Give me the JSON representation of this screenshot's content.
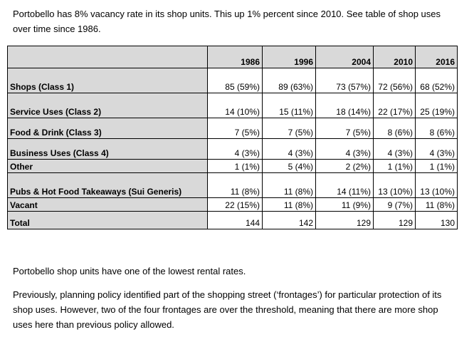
{
  "intro": "Portobello has 8% vacancy rate in its shop units. This up 1% percent since 2010. See table of shop uses over time since 1986.",
  "table": {
    "headers": [
      "",
      "1986",
      "1996",
      "2004",
      "2010",
      "2016"
    ],
    "rows": [
      {
        "label": "Shops (Class 1)",
        "values": [
          "85 (59%)",
          "89 (63%)",
          "73 (57%)",
          "72 (56%)",
          "68 (52%)"
        ]
      },
      {
        "label": "Service Uses (Class 2)",
        "values": [
          "14 (10%)",
          "15 (11%)",
          "18 (14%)",
          "22 (17%)",
          "25 (19%)"
        ]
      },
      {
        "label": "Food & Drink (Class 3)",
        "values": [
          "7 (5%)",
          "7 (5%)",
          "7 (5%)",
          "8 (6%)",
          "8 (6%)"
        ]
      },
      {
        "label": "Business Uses (Class 4)",
        "values": [
          "4 (3%)",
          "4 (3%)",
          "4 (3%)",
          "4 (3%)",
          "4 (3%)"
        ]
      },
      {
        "label": "Other",
        "values": [
          "1 (1%)",
          "5 (4%)",
          "2 (2%)",
          "1 (1%)",
          "1 (1%)"
        ]
      },
      {
        "label": "Pubs & Hot Food Takeaways (Sui Generis)",
        "values": [
          "11 (8%)",
          "11 (8%)",
          "14 (11%)",
          "13 (10%)",
          "13 (10%)"
        ]
      },
      {
        "label": "Vacant",
        "values": [
          "22 (15%)",
          "11 (8%)",
          "11 (9%)",
          "9 (7%)",
          "11 (8%)"
        ]
      },
      {
        "label": "Total",
        "values": [
          "144",
          "142",
          "129",
          "129",
          "130"
        ]
      }
    ]
  },
  "para1": "Portobello shop units have one of the lowest rental rates.",
  "para2": "Previously, planning policy identified part of the shopping street (‘frontages’) for particular protection of its shop uses. However, two of the four frontages are over the threshold, meaning that there are more shop uses here than previous policy allowed."
}
